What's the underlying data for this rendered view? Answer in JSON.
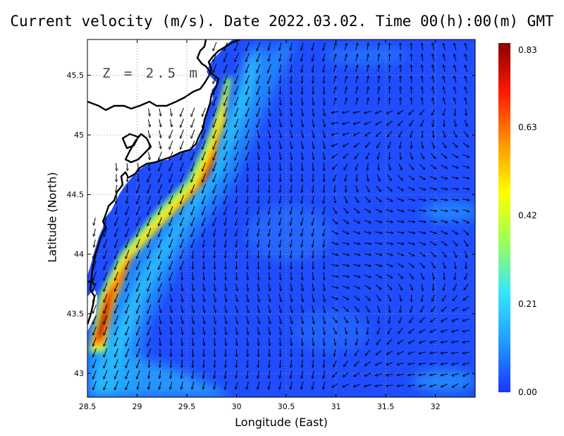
{
  "title": "Current velocity (m/s). Date 2022.03.02. Time 00(h):00(m) GMT",
  "depth_label": "Z = 2.5 m",
  "axes": {
    "xlabel": "Longitude (East)",
    "ylabel": "Latitude (North)",
    "x_range": [
      28.5,
      32.4
    ],
    "y_range": [
      42.8,
      45.8
    ],
    "x_ticks": [
      "28.5",
      "29",
      "29.5",
      "30",
      "30.5",
      "31",
      "31.5",
      "32"
    ],
    "y_ticks": [
      "43",
      "43.5",
      "44",
      "44.5",
      "45",
      "45.5"
    ],
    "grid": "dotted"
  },
  "colorbar": {
    "labels": [
      "0.83",
      "0.63",
      "0.42",
      "0.21",
      "0.00"
    ],
    "min": 0.0,
    "max": 0.83,
    "colors": [
      "#1a35ff",
      "#1f9bff",
      "#35e6ff",
      "#9bff5a",
      "#ffff00",
      "#ff9500",
      "#ff1a00",
      "#8b0000"
    ]
  },
  "chart_data": {
    "type": "heatmap",
    "variable": "Current velocity",
    "units": "m/s",
    "vector_field": "arrows",
    "jet_axis": [
      [
        28.7,
        43.2
      ],
      [
        28.8,
        43.7
      ],
      [
        29.1,
        44.1
      ],
      [
        29.5,
        44.5
      ],
      [
        29.72,
        44.9
      ],
      [
        29.85,
        45.25
      ],
      [
        29.92,
        45.55
      ]
    ],
    "jet_peak_speed": 0.83,
    "background_speed": 0.12
  }
}
